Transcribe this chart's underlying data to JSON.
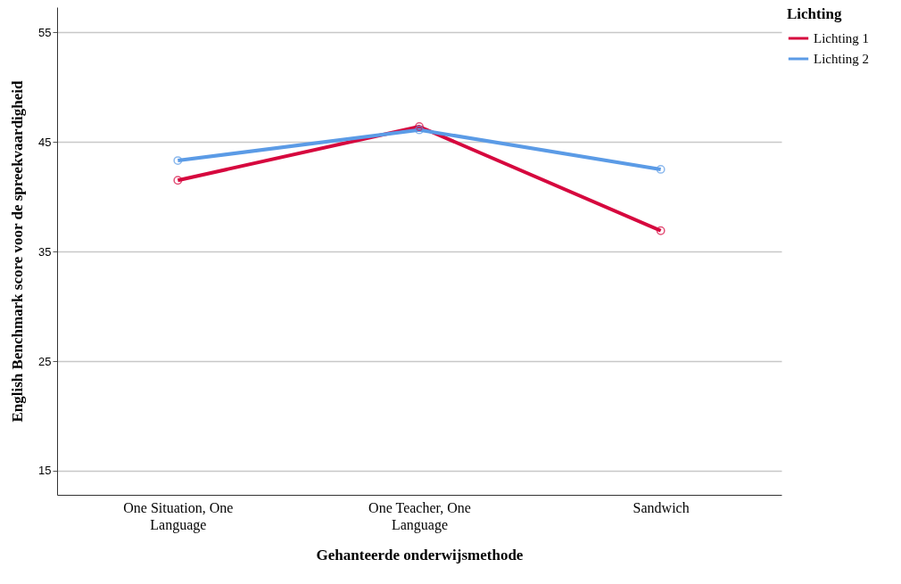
{
  "chart_data": {
    "type": "line",
    "xlabel": "Gehanteerde onderwijsmethode",
    "ylabel": "English Benchmark score voor de spreekvaardigheid",
    "legend_title": "Lichting",
    "categories": [
      "One Situation, One Language",
      "One Teacher, One Language",
      "Sandwich"
    ],
    "series": [
      {
        "name": "Lichting 1",
        "color": "#d6073e",
        "values": [
          41.5,
          46.4,
          36.9
        ]
      },
      {
        "name": "Lichting 2",
        "color": "#5b9be6",
        "values": [
          43.3,
          46.1,
          42.5
        ]
      }
    ],
    "ylim": [
      12.8,
      57.3
    ],
    "yticks": [
      15,
      25,
      35,
      45,
      55
    ],
    "grid": "y",
    "legend": "top right",
    "marker": "circle",
    "line_style": "solid"
  }
}
